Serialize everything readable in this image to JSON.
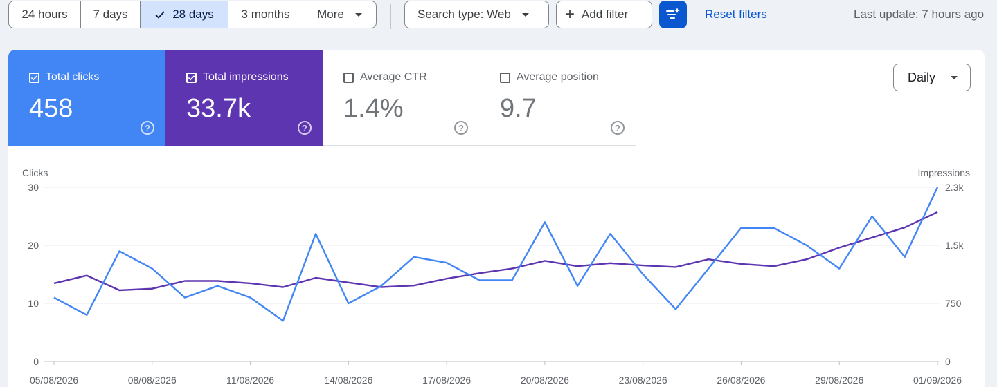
{
  "toolbar": {
    "ranges": [
      {
        "label": "24 hours",
        "active": false
      },
      {
        "label": "7 days",
        "active": false
      },
      {
        "label": "28 days",
        "active": true
      },
      {
        "label": "3 months",
        "active": false
      }
    ],
    "more_label": "More",
    "search_type_label": "Search type: Web",
    "add_filter_label": "Add filter",
    "filter_icon": "filter-sparkle-icon",
    "reset_label": "Reset filters",
    "last_update": "Last update: 7 hours ago"
  },
  "metrics": [
    {
      "label": "Total clicks",
      "value": "458",
      "checked": true,
      "color": "#4285f4"
    },
    {
      "label": "Total impressions",
      "value": "33.7k",
      "checked": true,
      "color": "#5e35b1"
    },
    {
      "label": "Average CTR",
      "value": "1.4%",
      "checked": false
    },
    {
      "label": "Average position",
      "value": "9.7",
      "checked": false
    }
  ],
  "granularity_label": "Daily",
  "chart_data": {
    "type": "line",
    "title": "",
    "y_left_label": "Clicks",
    "y_right_label": "Impressions",
    "y_left_ticks": [
      "0",
      "10",
      "20",
      "30"
    ],
    "y_right_ticks": [
      "0",
      "750",
      "1.5k",
      "2.3k"
    ],
    "ylim_left": [
      0,
      30
    ],
    "ylim_right": [
      0,
      2250
    ],
    "x_tick_labels": [
      "05/08/2026",
      "08/08/2026",
      "11/08/2026",
      "14/08/2026",
      "17/08/2026",
      "20/08/2026",
      "23/08/2026",
      "26/08/2026",
      "29/08/2026",
      "01/09/2026"
    ],
    "x": [
      "05/08/2026",
      "06/08/2026",
      "07/08/2026",
      "08/08/2026",
      "09/08/2026",
      "10/08/2026",
      "11/08/2026",
      "12/08/2026",
      "13/08/2026",
      "14/08/2026",
      "15/08/2026",
      "16/08/2026",
      "17/08/2026",
      "18/08/2026",
      "19/08/2026",
      "20/08/2026",
      "21/08/2026",
      "22/08/2026",
      "23/08/2026",
      "24/08/2026",
      "25/08/2026",
      "26/08/2026",
      "27/08/2026",
      "28/08/2026",
      "29/08/2026",
      "30/08/2026",
      "31/08/2026",
      "01/09/2026"
    ],
    "grid": true,
    "series": [
      {
        "name": "Clicks",
        "axis": "left",
        "color": "#4285f4",
        "values": [
          11,
          8,
          19,
          16,
          11,
          13,
          11,
          7,
          22,
          10,
          13,
          18,
          17,
          14,
          14,
          24,
          13,
          22,
          15,
          9,
          16,
          23,
          23,
          20,
          16,
          25,
          18,
          30
        ]
      },
      {
        "name": "Impressions",
        "axis": "right",
        "color": "#5e35b1",
        "values": [
          1010,
          1110,
          920,
          940,
          1040,
          1040,
          1010,
          960,
          1080,
          1020,
          960,
          980,
          1070,
          1140,
          1200,
          1300,
          1230,
          1270,
          1240,
          1220,
          1320,
          1260,
          1230,
          1320,
          1470,
          1600,
          1730,
          1930
        ]
      }
    ]
  }
}
